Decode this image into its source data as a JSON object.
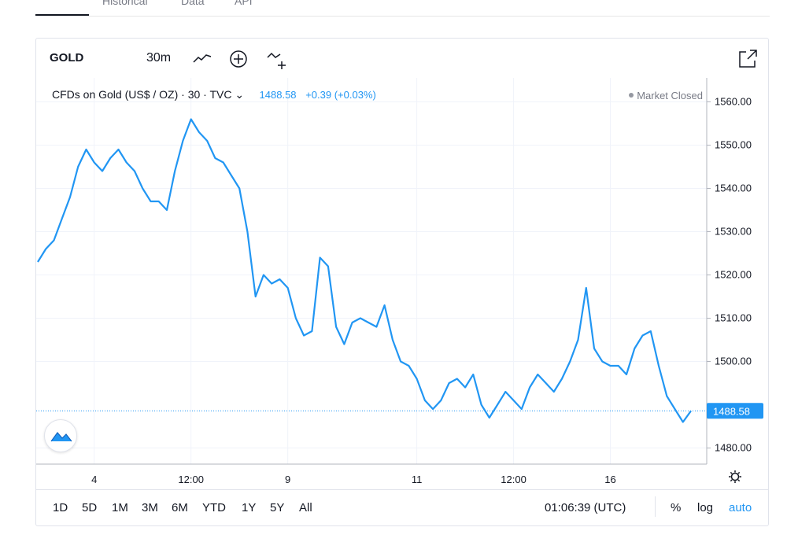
{
  "top_tabs": [
    {
      "label": "Historical"
    },
    {
      "label": "Data"
    },
    {
      "label": "API"
    }
  ],
  "toolbar": {
    "symbol": "GOLD",
    "interval": "30m",
    "icons": [
      "line-style-icon",
      "add-indicator-icon",
      "compare-icon",
      "fullscreen-icon"
    ]
  },
  "legend": {
    "title": "CFDs on Gold (US$ / OZ) · 30 · TVC",
    "last_price": "1488.58",
    "change": "+0.39 (+0.03%)"
  },
  "market_status": "Market Closed",
  "current_price_label": "1488.58",
  "bottom_bar": {
    "ranges": [
      "1D",
      "5D",
      "1M",
      "3M",
      "6M",
      "YTD",
      "1Y",
      "5Y",
      "All"
    ],
    "clock": "01:06:39 (UTC)",
    "percent": "%",
    "log": "log",
    "auto": "auto"
  },
  "colors": {
    "line": "#2196f3",
    "grid": "#f0f3fa",
    "axis_text": "#131722",
    "price_line": "#2196f3"
  },
  "chart_data": {
    "type": "line",
    "title": "",
    "xlabel": "",
    "ylabel": "",
    "ylim": [
      1477,
      1565
    ],
    "yticks": [
      "1560.00",
      "1550.00",
      "1540.00",
      "1530.00",
      "1520.00",
      "1510.00",
      "1500.00",
      "1480.00"
    ],
    "ytick_values": [
      1560,
      1550,
      1540,
      1530,
      1520,
      1510,
      1500,
      1480
    ],
    "xticks": [
      {
        "label": "4",
        "index": 7
      },
      {
        "label": "12:00",
        "index": 19
      },
      {
        "label": "9",
        "index": 31
      },
      {
        "label": "11",
        "index": 47
      },
      {
        "label": "12:00",
        "index": 59
      },
      {
        "label": "16",
        "index": 71
      }
    ],
    "grid": true,
    "series": [
      {
        "values": [
          1523,
          1526,
          1528,
          1533,
          1538,
          1545,
          1549,
          1546,
          1544,
          1547,
          1549,
          1546,
          1544,
          1540,
          1537,
          1537,
          1535,
          1544,
          1551,
          1556,
          1553,
          1551,
          1547,
          1546,
          1543,
          1540,
          1530,
          1515,
          1520,
          1518,
          1519,
          1517,
          1510,
          1506,
          1507,
          1524,
          1522,
          1508,
          1504,
          1509,
          1510,
          1509,
          1508,
          1513,
          1505,
          1500,
          1499,
          1496,
          1491,
          1489,
          1491,
          1495,
          1496,
          1494,
          1497,
          1490,
          1487,
          1490,
          1493,
          1491,
          1489,
          1494,
          1497,
          1495,
          1493,
          1496,
          1500,
          1505,
          1517,
          1503,
          1500,
          1499,
          1499,
          1497,
          1503,
          1506,
          1507,
          1499,
          1492,
          1489,
          1486,
          1488.58
        ]
      }
    ]
  }
}
